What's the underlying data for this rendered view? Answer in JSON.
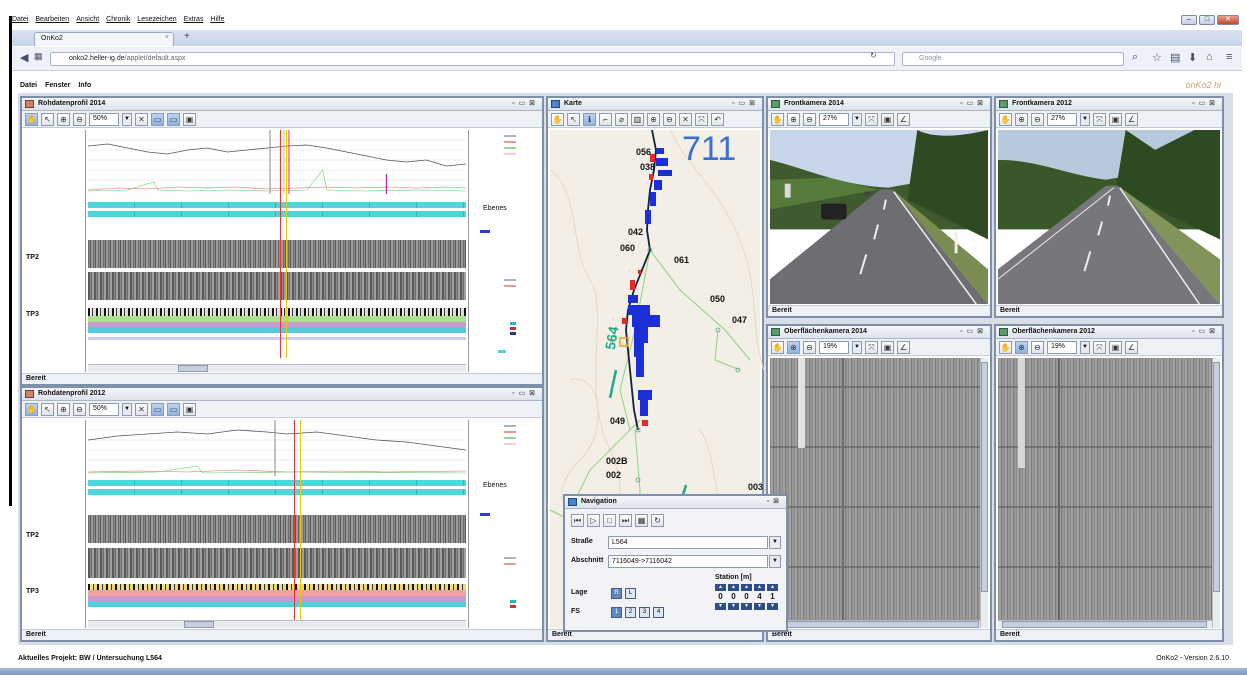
{
  "browser": {
    "menu": [
      "Datei",
      "Bearbeiten",
      "Ansicht",
      "Chronik",
      "Lesezeichen",
      "Extras",
      "Hilfe"
    ],
    "tab_title": "OnKo2",
    "url_host": "onko2.heller-ig.de",
    "url_path": "/applet/default.aspx",
    "search_placeholder": "Google"
  },
  "app": {
    "menu": [
      "Datei",
      "Fenster",
      "Info"
    ],
    "logo": "onKo2 hi",
    "status_project": "Aktuelles Projekt: BW / Untersuchung L564",
    "status_version": "OnKo2 - Version 2.6.10"
  },
  "panels": {
    "profile_2014": {
      "title": "Rohdatenprofil 2014",
      "zoom": "50%",
      "status": "Bereit",
      "labels": {
        "tp2": "TP2",
        "tp3": "TP3",
        "ebenes": "Ebenes"
      }
    },
    "profile_2012": {
      "title": "Rohdatenprofil 2012",
      "zoom": "50%",
      "status": "Bereit",
      "labels": {
        "tp2": "TP2",
        "tp3": "TP3",
        "ebenes": "Ebenes"
      }
    },
    "map": {
      "title": "Karte",
      "status": "Bereit",
      "big_label": "711",
      "road_label": "564",
      "labels": [
        "056",
        "038",
        "042",
        "060",
        "061",
        "050",
        "047",
        "049",
        "002B",
        "002",
        "003"
      ]
    },
    "front_2014": {
      "title": "Frontkamera 2014",
      "zoom": "27%",
      "status": "Bereit"
    },
    "front_2012": {
      "title": "Frontkamera 2012",
      "zoom": "27%",
      "status": "Bereit"
    },
    "surface_2014": {
      "title": "Oberflächenkamera 2014",
      "zoom": "19%",
      "status": "Bereit"
    },
    "surface_2012": {
      "title": "Oberflächenkamera 2012",
      "zoom": "19%",
      "status": "Bereit"
    }
  },
  "navigation": {
    "title": "Navigation",
    "strasse_label": "Straße",
    "strasse_value": "L564",
    "abschnitt_label": "Abschnitt",
    "abschnitt_value": "7116049->7116042",
    "station_label": "Station [m]",
    "station_digits": [
      "0",
      "0",
      "0",
      "4",
      "1"
    ],
    "lage_label": "Lage",
    "lage_options": [
      "R",
      "L"
    ],
    "fs_label": "FS",
    "fs_options": [
      "1",
      "2",
      "3",
      "4"
    ]
  }
}
